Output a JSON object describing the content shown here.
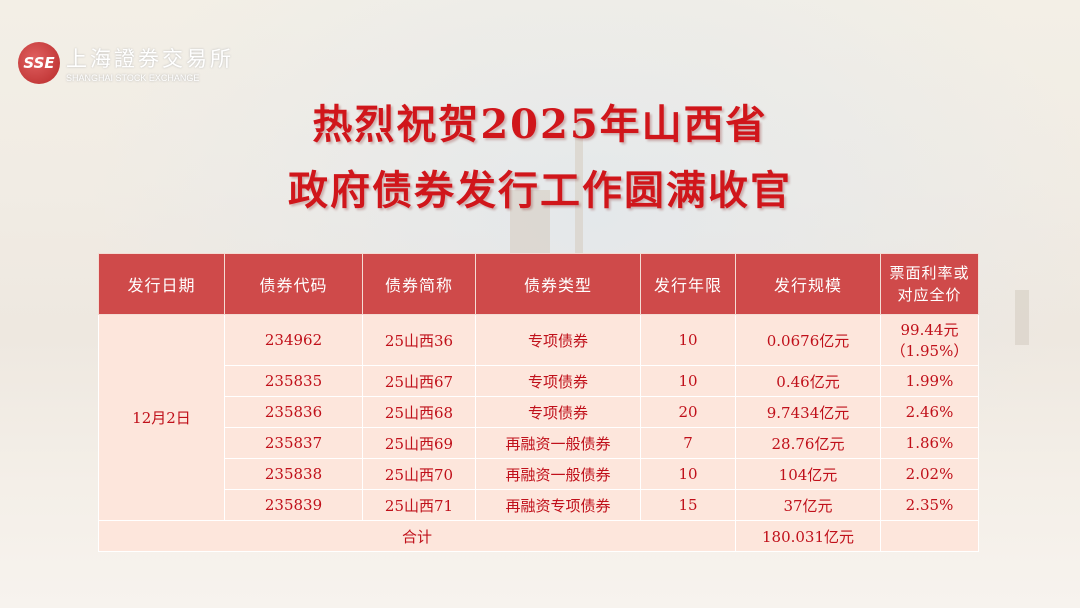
{
  "logo": {
    "cn": "上海證券交易所",
    "en": "SHANGHAI STOCK EXCHANGE",
    "mark": "SSE"
  },
  "title": {
    "line1": "热烈祝贺2025年山西省",
    "line2": "政府债券发行工作圆满收官"
  },
  "colors": {
    "title": "#d0161b",
    "header_bg": "#cf4a4a",
    "cell_bg": "#fde6dc",
    "cell_text": "#c0101a"
  },
  "table": {
    "headers": [
      "发行日期",
      "债券代码",
      "债券简称",
      "债券类型",
      "发行年限",
      "发行规模",
      "票面利率或对应全价"
    ],
    "date": "12月2日",
    "rows": [
      {
        "code": "234962",
        "name": "25山西36",
        "type": "专项债券",
        "term": "10",
        "size": "0.0676亿元",
        "rate": "99.44元",
        "rate2": "（1.95%）"
      },
      {
        "code": "235835",
        "name": "25山西67",
        "type": "专项债券",
        "term": "10",
        "size": "0.46亿元",
        "rate": "1.99%"
      },
      {
        "code": "235836",
        "name": "25山西68",
        "type": "专项债券",
        "term": "20",
        "size": "9.7434亿元",
        "rate": "2.46%"
      },
      {
        "code": "235837",
        "name": "25山西69",
        "type": "再融资一般债券",
        "term": "7",
        "size": "28.76亿元",
        "rate": "1.86%"
      },
      {
        "code": "235838",
        "name": "25山西70",
        "type": "再融资一般债券",
        "term": "10",
        "size": "104亿元",
        "rate": "2.02%"
      },
      {
        "code": "235839",
        "name": "25山西71",
        "type": "再融资专项债券",
        "term": "15",
        "size": "37亿元",
        "rate": "2.35%"
      }
    ],
    "total_label": "合计",
    "total_size": "180.031亿元"
  }
}
